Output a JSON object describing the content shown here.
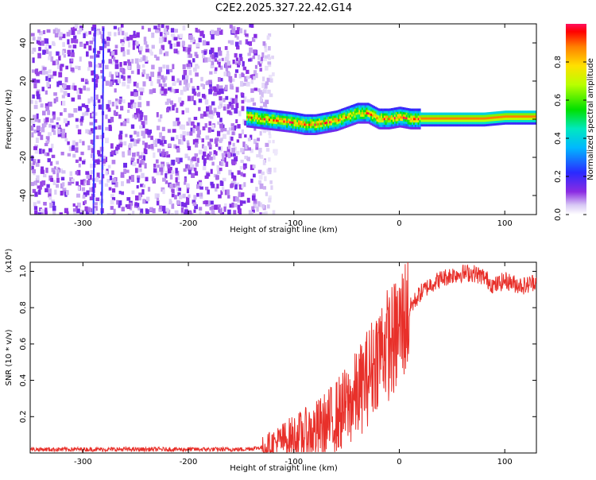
{
  "title": "C2E2.2025.327.22.42.G14",
  "colors": {
    "snr_line": "#e8302a",
    "background": "#ffffff"
  },
  "chart_data": [
    {
      "type": "heatmap",
      "name": "spectrogram",
      "xlabel": "Height of straight line (km)",
      "ylabel": "Frequency (Hz)",
      "xlim": [
        -350,
        130
      ],
      "ylim": [
        -50,
        50
      ],
      "xticks": [
        -300,
        -200,
        -100,
        0,
        100
      ],
      "xtick_labels": [
        "-300",
        "-200",
        "-100",
        "0",
        "100"
      ],
      "yticks": [
        -40,
        -20,
        0,
        20,
        40
      ],
      "ytick_labels": [
        "-40",
        "-20",
        "0",
        "20",
        "40"
      ],
      "colorbar": {
        "label": "Normalized spectral amplitude",
        "range": [
          0,
          1
        ],
        "ticks": [
          0.0,
          0.2,
          0.4,
          0.6,
          0.8
        ],
        "tick_labels": [
          "0.0",
          "0.2",
          "0.4",
          "0.6",
          "0.8"
        ]
      },
      "noise_region_km": [
        -350,
        -140
      ],
      "signal_center_hz": [
        [
          -145,
          2
        ],
        [
          -130,
          1
        ],
        [
          -115,
          0
        ],
        [
          -100,
          -1
        ],
        [
          -90,
          -2
        ],
        [
          -80,
          -2
        ],
        [
          -70,
          -1
        ],
        [
          -60,
          0
        ],
        [
          -50,
          2
        ],
        [
          -40,
          4
        ],
        [
          -30,
          4
        ],
        [
          -20,
          1
        ],
        [
          -10,
          1
        ],
        [
          0,
          2
        ],
        [
          10,
          1
        ],
        [
          20,
          1
        ],
        [
          40,
          1
        ],
        [
          60,
          1
        ],
        [
          80,
          1
        ],
        [
          100,
          2
        ],
        [
          130,
          2
        ]
      ]
    },
    {
      "type": "line",
      "name": "snr",
      "xlabel": "Height of straight line (km)",
      "ylabel": "SNR (10 * v/v)",
      "yscale_label": "(x10⁴)",
      "xlim": [
        -350,
        130
      ],
      "ylim": [
        0,
        1.05
      ],
      "xticks": [
        -300,
        -200,
        -100,
        0,
        100
      ],
      "xtick_labels": [
        "-300",
        "-200",
        "-100",
        "0",
        "100"
      ],
      "yticks": [
        0.2,
        0.4,
        0.6,
        0.8,
        1.0
      ],
      "ytick_labels": [
        "0.2",
        "0.4",
        "0.6",
        "0.8",
        "1.0"
      ],
      "series": [
        {
          "name": "SNR",
          "x": [
            -350,
            -300,
            -250,
            -200,
            -150,
            -130,
            -120,
            -110,
            -100,
            -90,
            -80,
            -70,
            -60,
            -50,
            -40,
            -30,
            -25,
            -20,
            -15,
            -10,
            -5,
            0,
            10,
            20,
            30,
            40,
            50,
            60,
            70,
            80,
            90,
            100,
            110,
            120,
            130
          ],
          "y": [
            0.02,
            0.02,
            0.02,
            0.02,
            0.02,
            0.03,
            0.05,
            0.07,
            0.09,
            0.1,
            0.12,
            0.15,
            0.2,
            0.25,
            0.32,
            0.42,
            0.48,
            0.55,
            0.6,
            0.6,
            0.62,
            0.68,
            0.8,
            0.88,
            0.93,
            0.96,
            0.98,
            0.99,
            0.99,
            0.97,
            0.92,
            0.95,
            0.93,
            0.92,
            0.95
          ]
        }
      ]
    }
  ]
}
